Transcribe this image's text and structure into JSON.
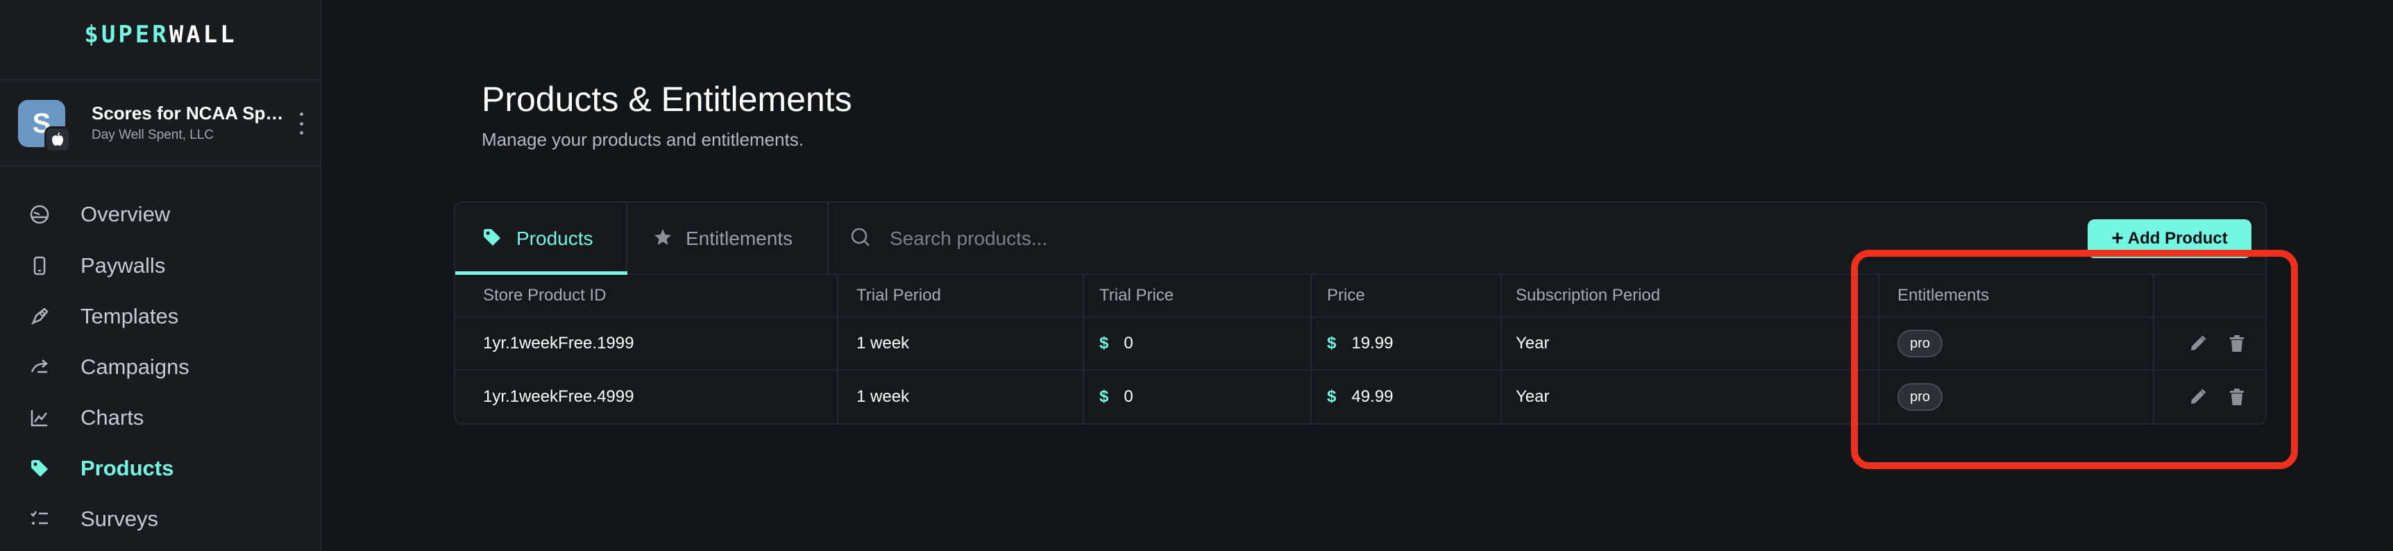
{
  "brand": {
    "logo_part1": "$UPER",
    "logo_part2": "WALL"
  },
  "app": {
    "name": "Scores for NCAA Sports",
    "org": "Day Well Spent, LLC"
  },
  "nav": {
    "items": [
      {
        "label": "Overview",
        "icon": "overview-icon"
      },
      {
        "label": "Paywalls",
        "icon": "paywalls-icon"
      },
      {
        "label": "Templates",
        "icon": "templates-icon"
      },
      {
        "label": "Campaigns",
        "icon": "campaigns-icon"
      },
      {
        "label": "Charts",
        "icon": "charts-icon"
      },
      {
        "label": "Products",
        "icon": "tag-icon",
        "active": true
      },
      {
        "label": "Surveys",
        "icon": "surveys-icon"
      }
    ]
  },
  "page": {
    "title": "Products & Entitlements",
    "subtitle": "Manage your products and entitlements."
  },
  "tabs": {
    "products": "Products",
    "entitlements": "Entitlements"
  },
  "search": {
    "placeholder": "Search products..."
  },
  "add_button": "Add Product",
  "table": {
    "columns": [
      "Store Product ID",
      "Trial Period",
      "Trial Price",
      "Price",
      "Subscription Period",
      "Entitlements"
    ],
    "rows": [
      {
        "id": "1yr.1weekFree.1999",
        "trial_period": "1 week",
        "trial_price_symbol": "$",
        "trial_price": "0",
        "price_symbol": "$",
        "price": "19.99",
        "subscription_period": "Year",
        "entitlement": "pro"
      },
      {
        "id": "1yr.1weekFree.4999",
        "trial_period": "1 week",
        "trial_price_symbol": "$",
        "trial_price": "0",
        "price_symbol": "$",
        "price": "49.99",
        "subscription_period": "Year",
        "entitlement": "pro"
      }
    ]
  },
  "colors": {
    "accent": "#74f6e0",
    "background": "#141519",
    "sidebar": "#1a1b1f",
    "highlight": "#f0301f"
  }
}
